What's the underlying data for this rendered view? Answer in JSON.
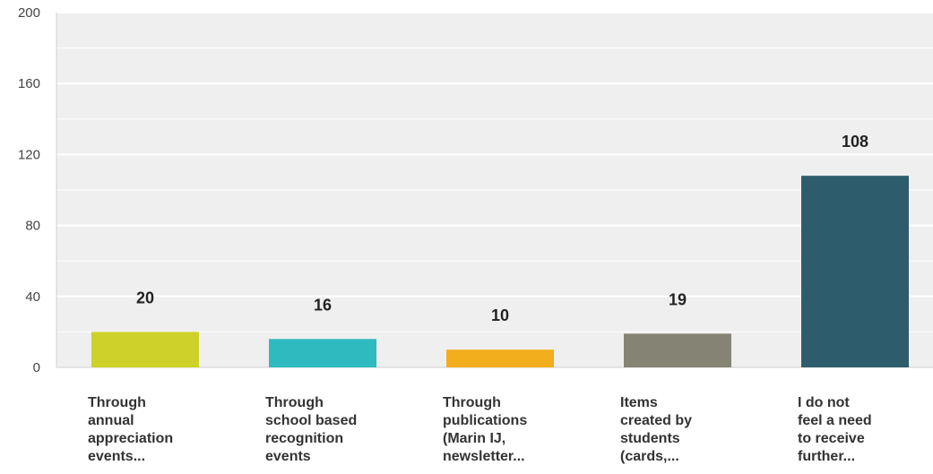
{
  "chart_data": {
    "type": "bar",
    "title": "",
    "xlabel": "",
    "ylabel": "",
    "ylim": [
      0,
      200
    ],
    "yticks": [
      0,
      40,
      80,
      120,
      160,
      200
    ],
    "grid": true,
    "categories": [
      "Through annual appreciation events...",
      "Through school based recognition events",
      "Through publications (Marin IJ, newsletter...",
      "Items created by students (cards,...",
      "I do not feel a need to receive further..."
    ],
    "category_lines": [
      [
        "Through",
        "annual",
        "appreciation",
        "events..."
      ],
      [
        "Through",
        "school based",
        "recognition",
        "events"
      ],
      [
        "Through",
        "publications",
        "(Marin IJ,",
        "newsletter..."
      ],
      [
        "Items",
        "created by",
        "students",
        "(cards,..."
      ],
      [
        "I do not",
        "feel a need",
        "to receive",
        "further..."
      ]
    ],
    "values": [
      20,
      16,
      10,
      19,
      108
    ],
    "data_labels": [
      "20",
      "16",
      "10",
      "19",
      "108"
    ],
    "colors": [
      "#ced12a",
      "#2fbac0",
      "#f3ae1e",
      "#858474",
      "#2d5d6c"
    ]
  }
}
